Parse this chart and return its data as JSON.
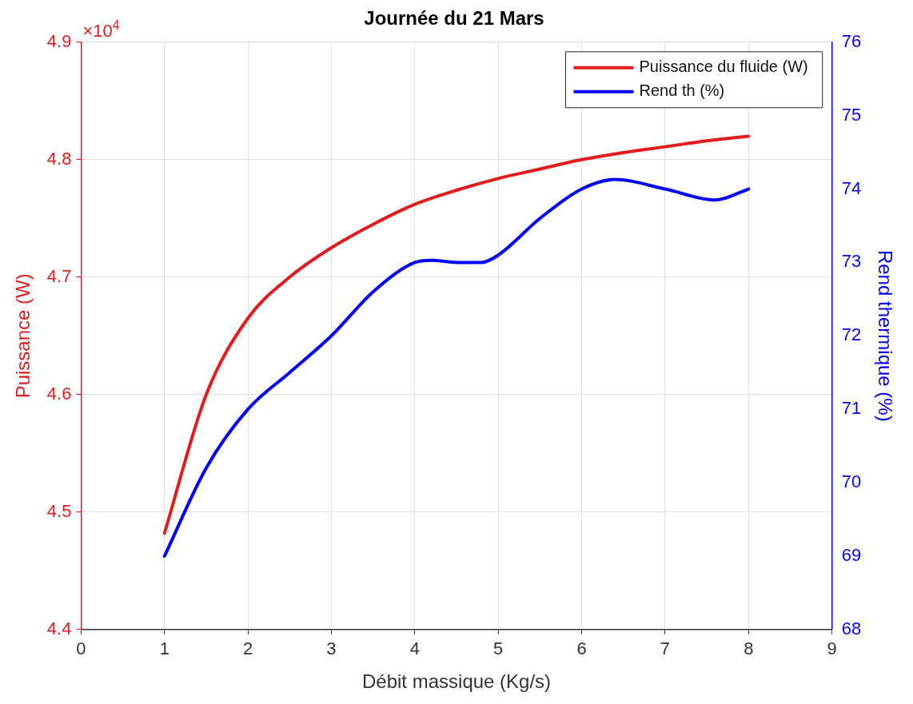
{
  "chart_data": {
    "type": "line",
    "title": "Journée du 21 Mars",
    "xlabel": "Débit massique (Kg/s)",
    "ylabel": "Puissance (W)",
    "y2label": "Rend thermique (%)",
    "x": [
      1,
      1.5,
      2,
      2.5,
      3,
      3.5,
      4,
      4.5,
      5,
      5.5,
      6,
      6.5,
      7,
      7.5,
      8
    ],
    "series": [
      {
        "name": "Puissance du fluide (W)",
        "color": "#e41a1c",
        "values": [
          4.482,
          4.6,
          4.665,
          4.7,
          4.725,
          4.745,
          4.762,
          4.774,
          4.784,
          4.792,
          4.8,
          4.806,
          4.811,
          4.816,
          4.82
        ]
      },
      {
        "name": "Rend th (%)",
        "color": "#0000ff",
        "axis": "y2",
        "x": [
          1,
          1.5,
          2,
          2.5,
          3,
          3.5,
          4,
          4.2,
          4.5,
          4.8,
          5,
          5.5,
          6,
          6.4,
          7,
          7.6,
          8
        ],
        "values": [
          69.0,
          70.2,
          71.0,
          71.5,
          72.0,
          72.6,
          73.0,
          73.03,
          73.0,
          73.0,
          73.1,
          73.6,
          74.0,
          74.13,
          74.0,
          73.85,
          74.0
        ]
      }
    ],
    "xlim": [
      0,
      9
    ],
    "xticks": [
      0,
      1,
      2,
      3,
      4,
      5,
      6,
      7,
      8,
      9
    ],
    "ylim": [
      4.4,
      4.9
    ],
    "yticks": [
      4.4,
      4.5,
      4.6,
      4.7,
      4.8,
      4.9
    ],
    "y2lim": [
      68,
      76
    ],
    "y2ticks": [
      68,
      69,
      70,
      71,
      72,
      73,
      74,
      75,
      76
    ],
    "annotations": [
      "×10$^{4}$"
    ],
    "grid": true,
    "legend": "top right",
    "marker": "none",
    "line_style": "solid"
  }
}
